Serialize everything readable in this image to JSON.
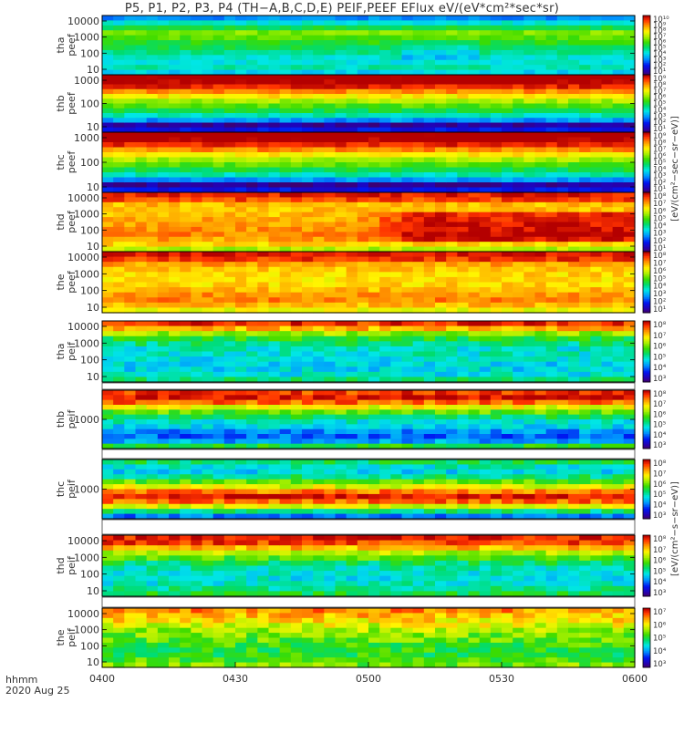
{
  "chart_data": {
    "type": "heatmap",
    "title": "P5, P1, P2, P3, P4 (TH−A,B,C,D,E) PEIF,PEEF EFlux eV/(eV*cm²*sec*sr)",
    "x_axis": {
      "ticks": [
        "0400",
        "0430",
        "0500",
        "0530",
        "0600"
      ],
      "time_range": [
        "0400",
        "0600"
      ],
      "unit_label": "hhmm",
      "date_label": "2020 Aug 25"
    },
    "colorbar_label_electron": "[eV/(cm²−sec−sr−eV)]",
    "colorbar_label_ion": "[eV/(cm²−s−sr−eV)]",
    "panels": [
      {
        "probe": "tha",
        "product": "peef",
        "ylabel": [
          "tha",
          "peef"
        ],
        "yticks": [
          "10000",
          "1000",
          "100",
          "10"
        ],
        "cb_ticks": [
          "10¹⁰",
          "10⁹",
          "10⁸",
          "10⁷",
          "10⁶",
          "10⁵",
          "10⁴",
          "10³",
          "10²",
          "10¹"
        ],
        "cb_range_exp": [
          1,
          10
        ],
        "profile": [
          3.5,
          4.5,
          5.5,
          6.5,
          6.2,
          5.8,
          5.4,
          5.0,
          4.6,
          4.5,
          4.8,
          4.2
        ]
      },
      {
        "probe": "thb",
        "product": "peef",
        "ylabel": [
          "thb",
          "peef"
        ],
        "yticks": [
          "1000",
          "100",
          "10"
        ],
        "cb_ticks": [
          "10⁹",
          "10⁸",
          "10⁷",
          "10⁶",
          "10⁵",
          "10⁴",
          "10³",
          "10²",
          "10¹"
        ],
        "cb_range_exp": [
          1,
          9
        ],
        "profile": [
          9.3,
          9.1,
          8.6,
          7.8,
          7.0,
          6.2,
          5.6,
          5.0,
          4.3,
          3.3,
          1.5,
          2.2
        ]
      },
      {
        "probe": "thc",
        "product": "peef",
        "ylabel": [
          "thc",
          "peef"
        ],
        "yticks": [
          "1000",
          "100",
          "10"
        ],
        "cb_ticks": [
          "10⁹",
          "10⁸",
          "10⁷",
          "10⁶",
          "10⁵",
          "10⁴",
          "10³",
          "10²",
          "10¹"
        ],
        "cb_range_exp": [
          1,
          9
        ],
        "profile": [
          9.3,
          9.1,
          8.6,
          7.8,
          7.0,
          6.2,
          5.6,
          5.0,
          4.3,
          3.3,
          1.5,
          2.2
        ]
      },
      {
        "probe": "thd",
        "product": "peef",
        "ylabel": [
          "thd",
          "peef"
        ],
        "yticks": [
          "10000",
          "1000",
          "100",
          "10"
        ],
        "cb_ticks": [
          "10⁸",
          "10⁷",
          "10⁶",
          "10⁵",
          "10⁴",
          "10³",
          "10²",
          "10¹"
        ],
        "cb_range_exp": [
          1,
          8
        ],
        "profile": [
          7.7,
          7.4,
          6.6,
          6.5,
          6.6,
          6.7,
          6.8,
          6.9,
          7.0,
          6.8,
          6.4,
          5.6
        ],
        "late_increase": 1.0
      },
      {
        "probe": "the",
        "product": "peef",
        "ylabel": [
          "the",
          "peef"
        ],
        "yticks": [
          "10000",
          "1000",
          "100",
          "10"
        ],
        "cb_ticks": [
          "10⁸",
          "10⁷",
          "10⁶",
          "10⁵",
          "10⁴",
          "10³",
          "10²",
          "10¹"
        ],
        "cb_range_exp": [
          1,
          8
        ],
        "profile": [
          7.8,
          7.5,
          6.8,
          6.5,
          6.4,
          6.3,
          6.4,
          6.6,
          6.9,
          7.0,
          6.6,
          6.0
        ]
      },
      {
        "probe": "tha",
        "product": "peif",
        "ylabel": [
          "tha",
          "peif"
        ],
        "yticks": [
          "10000",
          "1000",
          "100",
          "10"
        ],
        "cb_ticks": [
          "10⁸",
          "10⁷",
          "10⁶",
          "10⁵",
          "10⁴",
          "10³"
        ],
        "cb_range_exp": [
          3,
          8
        ],
        "profile": [
          7.7,
          7.0,
          6.2,
          5.6,
          5.3,
          5.0,
          5.0,
          4.9,
          4.8,
          4.8,
          4.9,
          5.3
        ]
      },
      {
        "probe": "thb",
        "product": "peif",
        "ylabel": [
          "thb",
          "peif"
        ],
        "yticks": [
          "1000"
        ],
        "cb_ticks": [
          "10⁸",
          "10⁷",
          "10⁶",
          "10⁵",
          "10⁴",
          "10³"
        ],
        "cb_range_exp": [
          3,
          8
        ],
        "profile": [
          7.6,
          7.9,
          7.4,
          6.6,
          5.9,
          5.4,
          5.0,
          4.8,
          4.4,
          4.2,
          4.5,
          5.6
        ],
        "top_band": true
      },
      {
        "probe": "thc",
        "product": "peif",
        "ylabel": [
          "thc",
          "peif"
        ],
        "yticks": [
          "1000"
        ],
        "cb_ticks": [
          "10⁸",
          "10⁷",
          "10⁶",
          "10⁵",
          "10⁴",
          "10³"
        ],
        "cb_range_exp": [
          3,
          8
        ],
        "profile": [
          5.4,
          5.0,
          4.8,
          5.3,
          5.9,
          6.5,
          7.3,
          7.9,
          7.4,
          6.5,
          5.3,
          4.3
        ],
        "top_band": true
      },
      {
        "probe": "thd",
        "product": "peif",
        "ylabel": [
          "thd",
          "peif"
        ],
        "yticks": [
          "10000",
          "1000",
          "100",
          "10"
        ],
        "cb_ticks": [
          "10⁸",
          "10⁷",
          "10⁶",
          "10⁵",
          "10⁴",
          "10³"
        ],
        "cb_range_exp": [
          3,
          8
        ],
        "profile": [
          7.8,
          7.6,
          7.0,
          6.3,
          5.8,
          5.4,
          5.1,
          5.0,
          4.9,
          5.0,
          5.2,
          5.5
        ],
        "top_band": true
      },
      {
        "probe": "the",
        "product": "peif",
        "ylabel": [
          "the",
          "peif"
        ],
        "yticks": [
          "10000",
          "1000",
          "100",
          "10"
        ],
        "cb_ticks": [
          "10⁷",
          "10⁶",
          "10⁵",
          "10⁴",
          "10³"
        ],
        "cb_range_exp": [
          3,
          7
        ],
        "profile": [
          6.4,
          6.2,
          6.0,
          5.8,
          5.6,
          5.4,
          5.3,
          5.2,
          5.1,
          5.1,
          5.2,
          5.4
        ],
        "top_band": true
      }
    ]
  }
}
